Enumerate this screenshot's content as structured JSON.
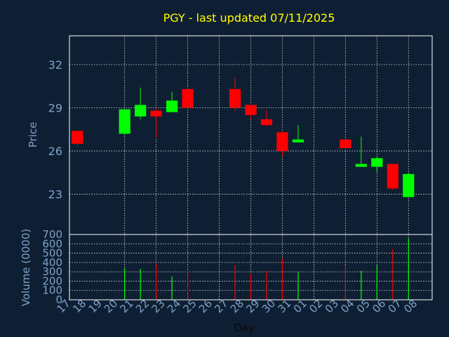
{
  "colors": {
    "background": "#0f1f33",
    "title": "#ffff00",
    "axis_text": "#7ea2c8",
    "frame": "#ffffff",
    "grid": "#ffffff",
    "up": "#00ff00",
    "down": "#ff0000"
  },
  "chart_data": [
    {
      "type": "candlestick",
      "title": "PGY - last updated 07/11/2025",
      "ylabel": "Price",
      "ylim": [
        20.2,
        34.0
      ],
      "yticks": [
        23,
        26,
        29,
        32
      ],
      "grid": true,
      "candles": [
        {
          "date": "17",
          "open": 27.4,
          "high": 27.4,
          "low": 26.4,
          "close": 26.5
        },
        {
          "date": "20",
          "open": 27.2,
          "high": 28.9,
          "low": 27.1,
          "close": 28.9
        },
        {
          "date": "21",
          "open": 28.4,
          "high": 30.4,
          "low": 28.2,
          "close": 29.2
        },
        {
          "date": "22",
          "open": 28.8,
          "high": 29.0,
          "low": 26.9,
          "close": 28.4
        },
        {
          "date": "23",
          "open": 28.7,
          "high": 30.1,
          "low": 28.7,
          "close": 29.5
        },
        {
          "date": "24",
          "open": 30.3,
          "high": 30.5,
          "low": 29.0,
          "close": 29.0
        },
        {
          "date": "27",
          "open": 30.3,
          "high": 31.1,
          "low": 28.8,
          "close": 29.0
        },
        {
          "date": "28",
          "open": 29.2,
          "high": 29.2,
          "low": 28.2,
          "close": 28.5
        },
        {
          "date": "29",
          "open": 28.2,
          "high": 28.8,
          "low": 27.7,
          "close": 27.8
        },
        {
          "date": "30",
          "open": 27.3,
          "high": 27.4,
          "low": 25.6,
          "close": 26.0
        },
        {
          "date": "31",
          "open": 26.6,
          "high": 27.8,
          "low": 26.6,
          "close": 26.8
        },
        {
          "date": "03",
          "open": 26.8,
          "high": 26.8,
          "low": 26.1,
          "close": 26.2
        },
        {
          "date": "04",
          "open": 24.9,
          "high": 27.0,
          "low": 24.9,
          "close": 25.1
        },
        {
          "date": "05",
          "open": 24.9,
          "high": 25.6,
          "low": 24.5,
          "close": 25.5
        },
        {
          "date": "06",
          "open": 25.1,
          "high": 25.1,
          "low": 23.3,
          "close": 23.4
        },
        {
          "date": "07",
          "open": 22.8,
          "high": 24.5,
          "low": 22.8,
          "close": 24.4
        }
      ],
      "volume": {
        "ylabel": "Volume (0000)",
        "ylim": [
          0,
          700
        ],
        "yticks": [
          0,
          100,
          200,
          300,
          400,
          500,
          600,
          700
        ],
        "values": [
          {
            "date": "17",
            "value": 0
          },
          {
            "date": "20",
            "value": 340
          },
          {
            "date": "21",
            "value": 330
          },
          {
            "date": "22",
            "value": 390
          },
          {
            "date": "23",
            "value": 250
          },
          {
            "date": "24",
            "value": 310
          },
          {
            "date": "27",
            "value": 370
          },
          {
            "date": "28",
            "value": 280
          },
          {
            "date": "29",
            "value": 310
          },
          {
            "date": "30",
            "value": 450
          },
          {
            "date": "31",
            "value": 300
          },
          {
            "date": "03",
            "value": 370
          },
          {
            "date": "04",
            "value": 310
          },
          {
            "date": "05",
            "value": 370
          },
          {
            "date": "06",
            "value": 540
          },
          {
            "date": "07",
            "value": 660
          }
        ]
      },
      "xlabel": "Day",
      "xticks": [
        "17",
        "18",
        "19",
        "20",
        "21",
        "22",
        "23",
        "24",
        "25",
        "26",
        "27",
        "28",
        "29",
        "30",
        "31",
        "01",
        "02",
        "03",
        "04",
        "05",
        "06",
        "07",
        "08"
      ]
    }
  ]
}
